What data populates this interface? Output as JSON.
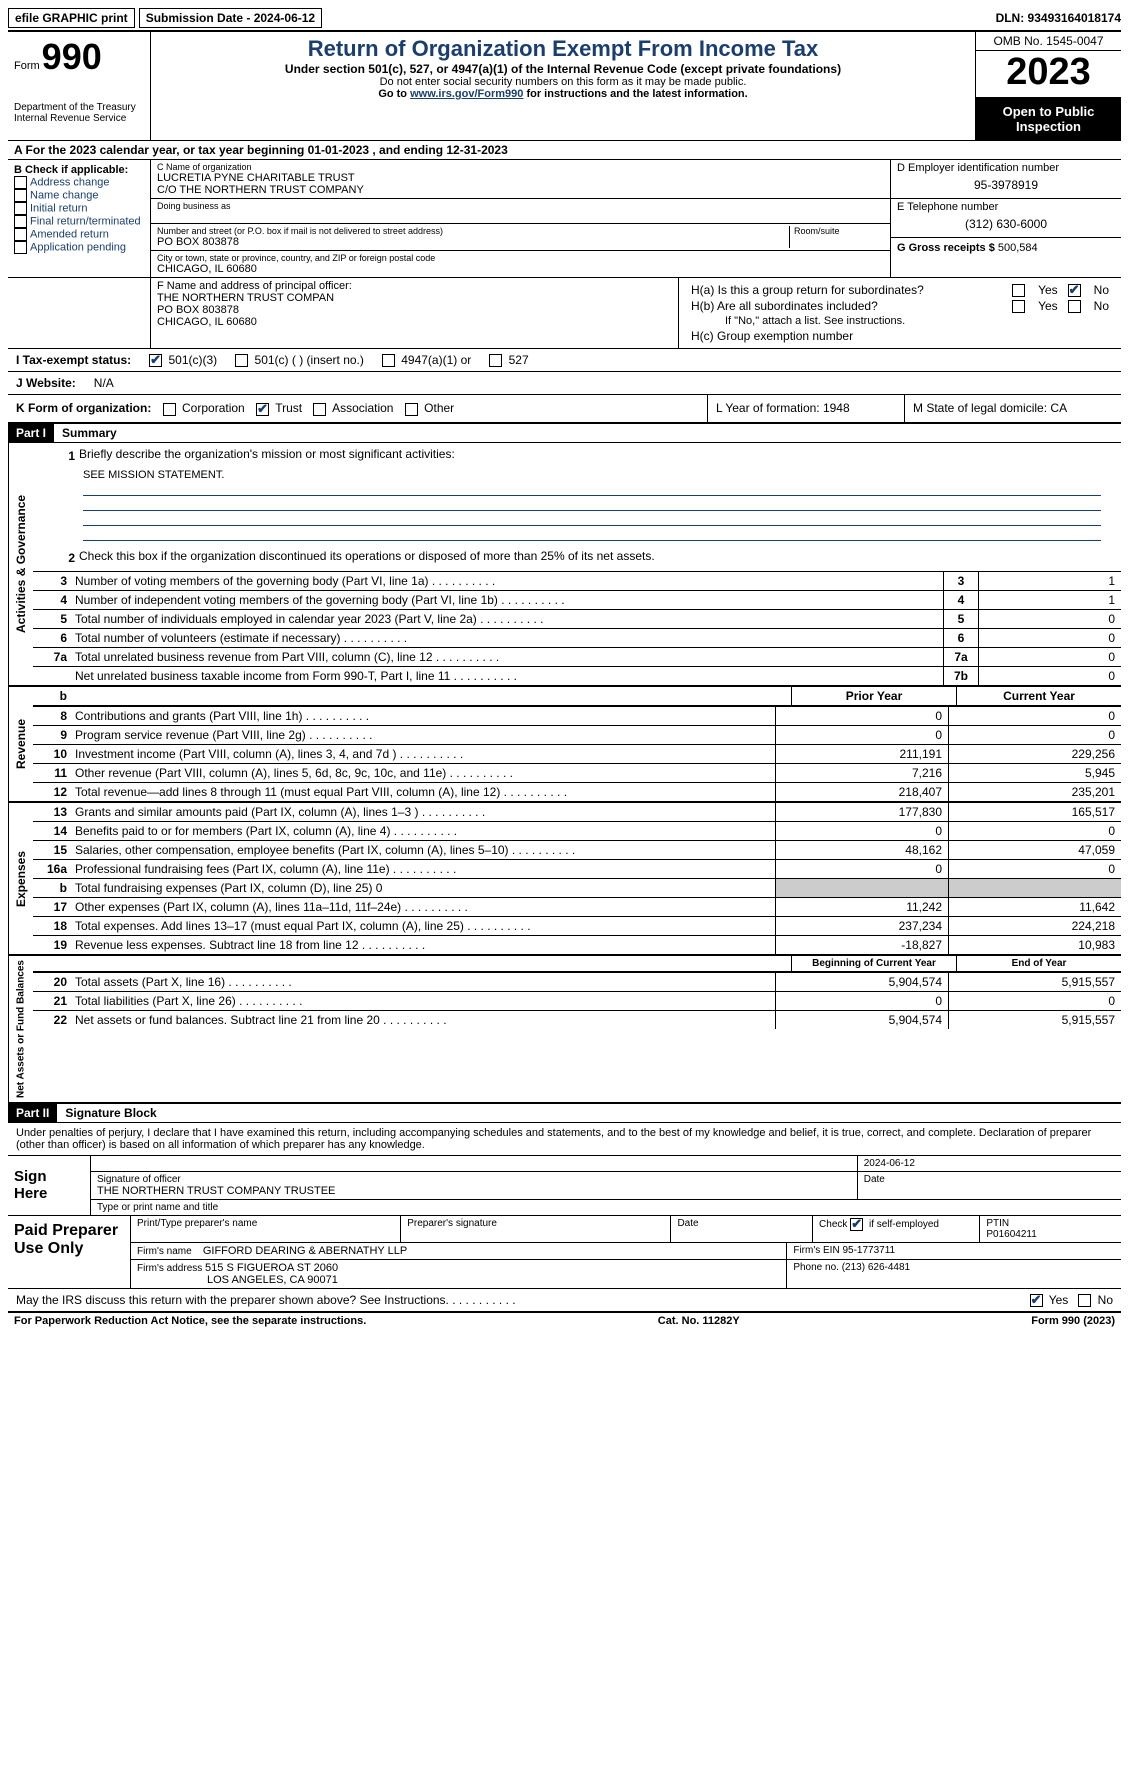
{
  "topbar": {
    "efile": "efile GRAPHIC print",
    "submission": "Submission Date - 2024-06-12",
    "dln": "DLN: 93493164018174"
  },
  "header": {
    "form_word": "Form",
    "form_num": "990",
    "dept": "Department of the Treasury Internal Revenue Service",
    "title": "Return of Organization Exempt From Income Tax",
    "subtitle": "Under section 501(c), 527, or 4947(a)(1) of the Internal Revenue Code (except private foundations)",
    "note1": "Do not enter social security numbers on this form as it may be made public.",
    "note2_pre": "Go to ",
    "note2_link": "www.irs.gov/Form990",
    "note2_post": " for instructions and the latest information.",
    "omb": "OMB No. 1545-0047",
    "year": "2023",
    "open": "Open to Public Inspection"
  },
  "lineA": "A For the 2023 calendar year, or tax year beginning 01-01-2023   , and ending 12-31-2023",
  "boxB": {
    "label": "B Check if applicable:",
    "items": [
      "Address change",
      "Name change",
      "Initial return",
      "Final return/terminated",
      "Amended return",
      "Application pending"
    ]
  },
  "boxC": {
    "name_label": "C Name of organization",
    "name": "LUCRETIA PYNE CHARITABLE TRUST",
    "co": "C/O THE NORTHERN TRUST COMPANY",
    "dba_label": "Doing business as",
    "addr_label": "Number and street (or P.O. box if mail is not delivered to street address)",
    "room_label": "Room/suite",
    "addr": "PO BOX 803878",
    "city_label": "City or town, state or province, country, and ZIP or foreign postal code",
    "city": "CHICAGO, IL  60680"
  },
  "boxD": {
    "label": "D Employer identification number",
    "value": "95-3978919"
  },
  "boxE": {
    "label": "E Telephone number",
    "value": "(312) 630-6000"
  },
  "boxG": {
    "label": "G Gross receipts $",
    "value": "500,584"
  },
  "boxF": {
    "label": "F  Name and address of principal officer:",
    "l1": "THE NORTHERN TRUST COMPAN",
    "l2": "PO BOX 803878",
    "l3": "CHICAGO, IL  60680"
  },
  "boxH": {
    "a": "H(a)  Is this a group return for subordinates?",
    "b": "H(b)  Are all subordinates included?",
    "b_note": "If \"No,\" attach a list. See instructions.",
    "c": "H(c)  Group exemption number",
    "yes": "Yes",
    "no": "No"
  },
  "taxExempt": {
    "label": "I   Tax-exempt status:",
    "o1": "501(c)(3)",
    "o2": "501(c) (  ) (insert no.)",
    "o3": "4947(a)(1) or",
    "o4": "527"
  },
  "website": {
    "label": "J   Website:",
    "value": "N/A"
  },
  "k": {
    "label": "K Form of organization:",
    "o1": "Corporation",
    "o2": "Trust",
    "o3": "Association",
    "o4": "Other",
    "l": "L Year of formation: 1948",
    "m": "M State of legal domicile: CA"
  },
  "part1": {
    "header": "Part I",
    "title": "Summary"
  },
  "mission": {
    "num": "1",
    "label": "Briefly describe the organization's mission or most significant activities:",
    "text": "SEE MISSION STATEMENT."
  },
  "gov": {
    "label": "Activities & Governance",
    "l2": "Check this box         if the organization discontinued its operations or disposed of more than 25% of its net assets.",
    "rows": [
      {
        "n": "3",
        "d": "Number of voting members of the governing body (Part VI, line 1a)",
        "box": "3",
        "v": "1"
      },
      {
        "n": "4",
        "d": "Number of independent voting members of the governing body (Part VI, line 1b)",
        "box": "4",
        "v": "1"
      },
      {
        "n": "5",
        "d": "Total number of individuals employed in calendar year 2023 (Part V, line 2a)",
        "box": "5",
        "v": "0"
      },
      {
        "n": "6",
        "d": "Total number of volunteers (estimate if necessary)",
        "box": "6",
        "v": "0"
      },
      {
        "n": "7a",
        "d": "Total unrelated business revenue from Part VIII, column (C), line 12",
        "box": "7a",
        "v": "0"
      },
      {
        "n": "",
        "d": "Net unrelated business taxable income from Form 990-T, Part I, line 11",
        "box": "7b",
        "v": "0"
      }
    ]
  },
  "rev": {
    "label": "Revenue",
    "hdr_b": "b",
    "hdr_prior": "Prior Year",
    "hdr_curr": "Current Year",
    "rows": [
      {
        "n": "8",
        "d": "Contributions and grants (Part VIII, line 1h)",
        "p": "0",
        "c": "0"
      },
      {
        "n": "9",
        "d": "Program service revenue (Part VIII, line 2g)",
        "p": "0",
        "c": "0"
      },
      {
        "n": "10",
        "d": "Investment income (Part VIII, column (A), lines 3, 4, and 7d )",
        "p": "211,191",
        "c": "229,256"
      },
      {
        "n": "11",
        "d": "Other revenue (Part VIII, column (A), lines 5, 6d, 8c, 9c, 10c, and 11e)",
        "p": "7,216",
        "c": "5,945"
      },
      {
        "n": "12",
        "d": "Total revenue—add lines 8 through 11 (must equal Part VIII, column (A), line 12)",
        "p": "218,407",
        "c": "235,201"
      }
    ]
  },
  "exp": {
    "label": "Expenses",
    "rows": [
      {
        "n": "13",
        "d": "Grants and similar amounts paid (Part IX, column (A), lines 1–3 )",
        "p": "177,830",
        "c": "165,517"
      },
      {
        "n": "14",
        "d": "Benefits paid to or for members (Part IX, column (A), line 4)",
        "p": "0",
        "c": "0"
      },
      {
        "n": "15",
        "d": "Salaries, other compensation, employee benefits (Part IX, column (A), lines 5–10)",
        "p": "48,162",
        "c": "47,059"
      },
      {
        "n": "16a",
        "d": "Professional fundraising fees (Part IX, column (A), line 11e)",
        "p": "0",
        "c": "0"
      },
      {
        "n": "b",
        "d": "Total fundraising expenses (Part IX, column (D), line 25) 0",
        "p": "",
        "c": "",
        "gray": true
      },
      {
        "n": "17",
        "d": "Other expenses (Part IX, column (A), lines 11a–11d, 11f–24e)",
        "p": "11,242",
        "c": "11,642"
      },
      {
        "n": "18",
        "d": "Total expenses. Add lines 13–17 (must equal Part IX, column (A), line 25)",
        "p": "237,234",
        "c": "224,218"
      },
      {
        "n": "19",
        "d": "Revenue less expenses. Subtract line 18 from line 12",
        "p": "-18,827",
        "c": "10,983"
      }
    ]
  },
  "net": {
    "label": "Net Assets or Fund Balances",
    "hdr_b": "Beginning of Current Year",
    "hdr_e": "End of Year",
    "rows": [
      {
        "n": "20",
        "d": "Total assets (Part X, line 16)",
        "p": "5,904,574",
        "c": "5,915,557"
      },
      {
        "n": "21",
        "d": "Total liabilities (Part X, line 26)",
        "p": "0",
        "c": "0"
      },
      {
        "n": "22",
        "d": "Net assets or fund balances. Subtract line 21 from line 20",
        "p": "5,904,574",
        "c": "5,915,557"
      }
    ]
  },
  "part2": {
    "header": "Part II",
    "title": "Signature Block"
  },
  "sig": {
    "decl": "Under penalties of perjury, I declare that I have examined this return, including accompanying schedules and statements, and to the best of my knowledge and belief, it is true, correct, and complete. Declaration of preparer (other than officer) is based on all information of which preparer has any knowledge.",
    "here": "Sign Here",
    "date": "2024-06-12",
    "officer_sig": "Signature of officer",
    "officer": "THE NORTHERN TRUST COMPANY TRUSTEE",
    "type_name": "Type or print name and title",
    "date_label": "Date"
  },
  "paid": {
    "label": "Paid Preparer Use Only",
    "h1": "Print/Type preparer's name",
    "h2": "Preparer's signature",
    "h3": "Date",
    "h4_pre": "Check",
    "h4_post": "if self-employed",
    "h5": "PTIN",
    "ptin": "P01604211",
    "firm_label": "Firm's name",
    "firm": "GIFFORD DEARING & ABERNATHY LLP",
    "ein_label": "Firm's EIN",
    "ein": "95-1773711",
    "addr_label": "Firm's address",
    "addr1": "515 S FIGUEROA ST 2060",
    "addr2": "LOS ANGELES, CA  90071",
    "phone_label": "Phone no.",
    "phone": "(213) 626-4481"
  },
  "discuss": {
    "q": "May the IRS discuss this return with the preparer shown above? See Instructions.",
    "yes": "Yes",
    "no": "No"
  },
  "footer": {
    "l": "For Paperwork Reduction Act Notice, see the separate instructions.",
    "c": "Cat. No. 11282Y",
    "r": "Form 990 (2023)"
  }
}
